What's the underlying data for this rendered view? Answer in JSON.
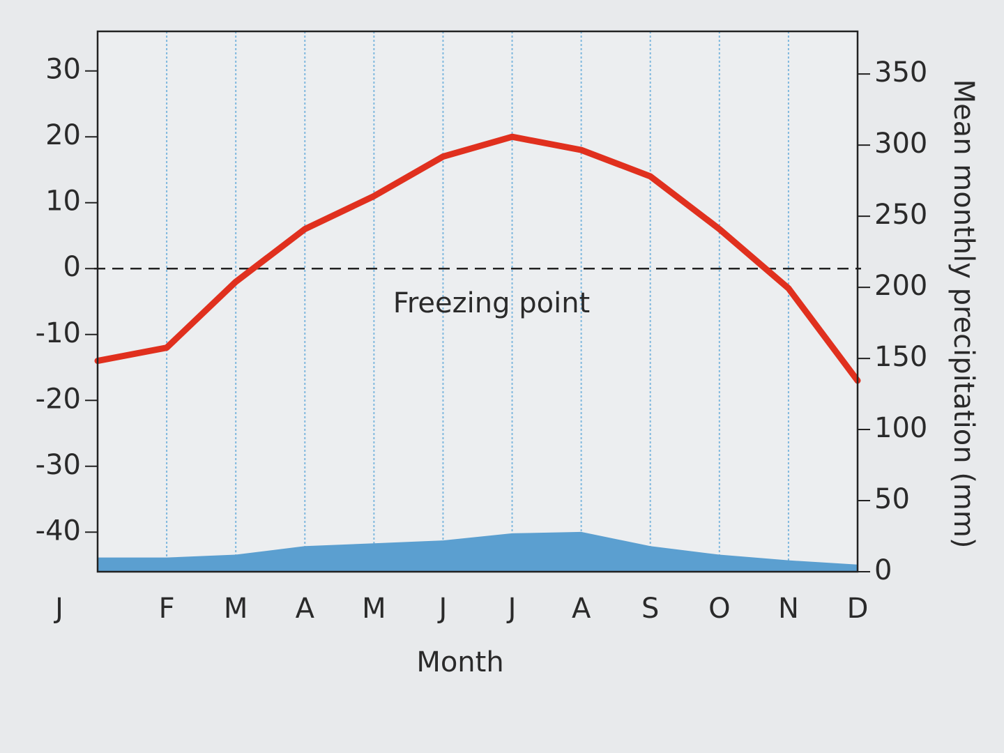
{
  "chart_data": {
    "type": "line",
    "x_label": "Month",
    "y2_label": "Mean monthly precipitation (mm)",
    "categories": [
      "J",
      "F",
      "M",
      "A",
      "M",
      "J",
      "J",
      "A",
      "S",
      "O",
      "N",
      "D"
    ],
    "series": [
      {
        "type": "line",
        "axis": "y",
        "color": "#e0301e",
        "values": [
          -14,
          -12,
          -2,
          6,
          11,
          17,
          20,
          18,
          14,
          6,
          -3,
          -17
        ]
      },
      {
        "type": "area",
        "axis": "y2",
        "color": "#5b9fd0",
        "values": [
          10,
          10,
          12,
          18,
          20,
          22,
          27,
          28,
          18,
          12,
          8,
          5
        ]
      }
    ],
    "ylim": [
      -46,
      36
    ],
    "yticks": [
      -40,
      -30,
      -20,
      -10,
      0,
      10,
      20,
      30
    ],
    "y2lim": [
      0,
      380
    ],
    "y2ticks": [
      0,
      50,
      100,
      150,
      200,
      250,
      300,
      350
    ],
    "reference_line": {
      "value": 0,
      "label": "Freezing point",
      "style": "dashed"
    },
    "grid": "x",
    "grid_color": "#7fb8de"
  }
}
